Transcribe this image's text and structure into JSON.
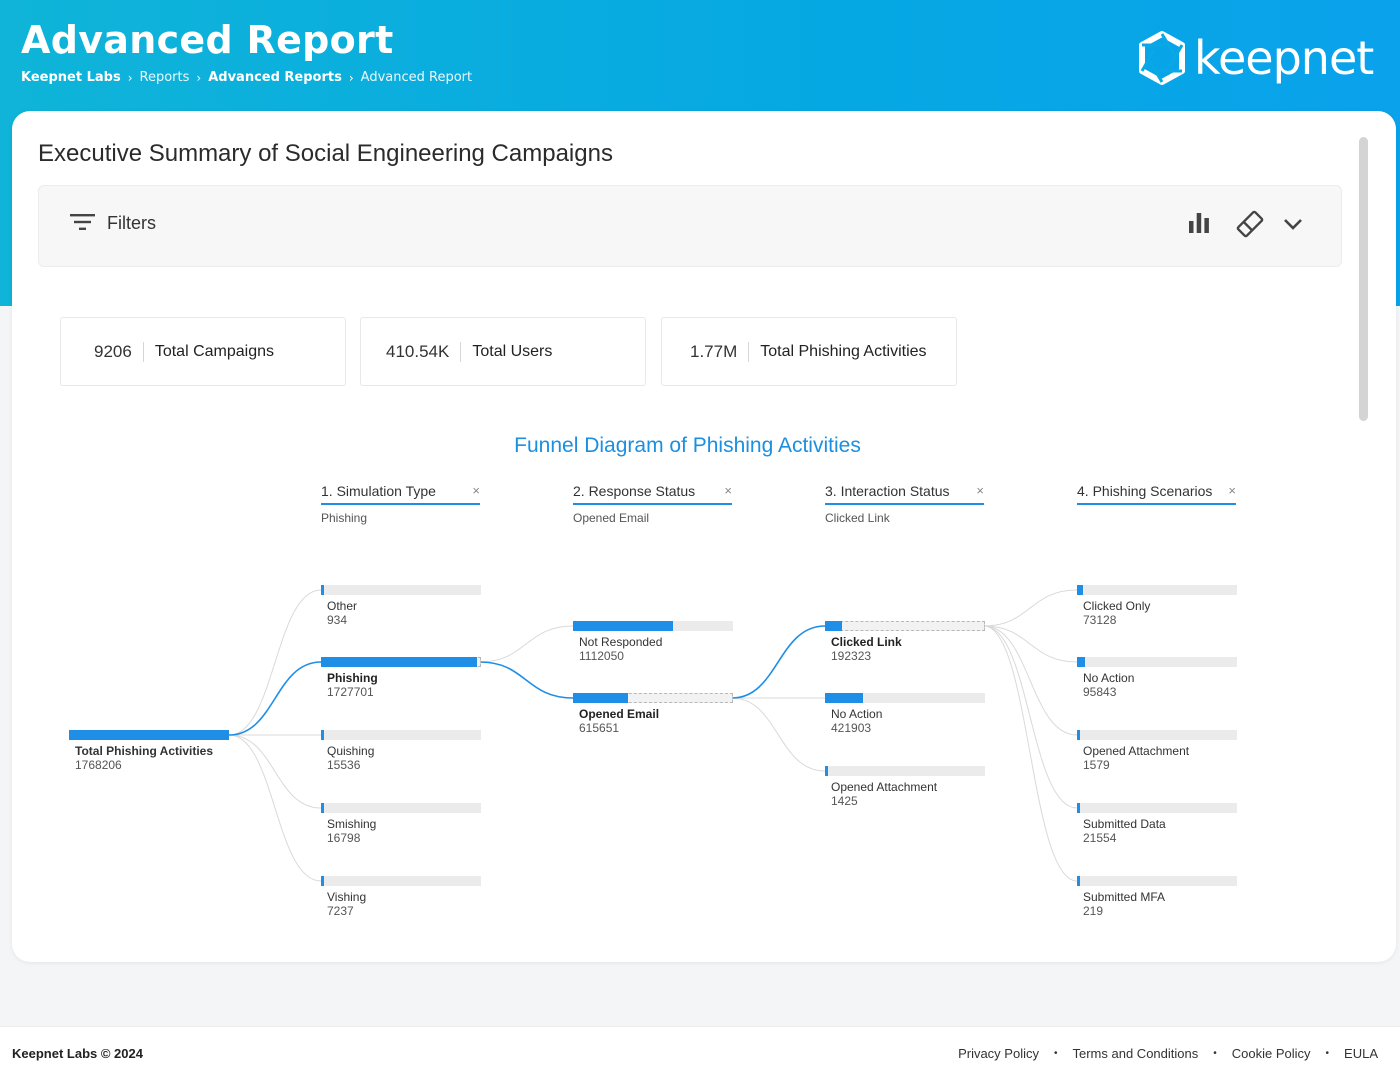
{
  "header": {
    "title": "Advanced Report",
    "breadcrumb": [
      "Keepnet Labs",
      "Reports",
      "Advanced Reports",
      "Advanced Report"
    ],
    "logo_text": "keepnet"
  },
  "main": {
    "title": "Executive Summary of Social Engineering Campaigns",
    "filters_label": "Filters",
    "toolbar_icons": [
      "bar-chart-icon",
      "eraser-icon",
      "chevron-down-icon"
    ]
  },
  "kpis": [
    {
      "value": "9206",
      "label": "Total Campaigns"
    },
    {
      "value": "410.54K",
      "label": "Total Users"
    },
    {
      "value": "1.77M",
      "label": "Total Phishing Activities"
    }
  ],
  "funnel": {
    "title": "Funnel Diagram of Phishing Activities",
    "accent": "#1e8ee6",
    "root": {
      "name": "Total Phishing Activities",
      "value": "1768206",
      "fraction": 1.0
    },
    "columns": [
      {
        "header": "1. Simulation Type",
        "selected": "Phishing",
        "close": "×",
        "nodes": [
          {
            "name": "Other",
            "value": "934",
            "fraction": 0.002
          },
          {
            "name": "Phishing",
            "value": "1727701",
            "fraction": 0.977,
            "selected": true
          },
          {
            "name": "Quishing",
            "value": "15536",
            "fraction": 0.009
          },
          {
            "name": "Smishing",
            "value": "16798",
            "fraction": 0.01
          },
          {
            "name": "Vishing",
            "value": "7237",
            "fraction": 0.004
          }
        ]
      },
      {
        "header": "2. Response Status",
        "selected": "Opened Email",
        "close": "×",
        "nodes": [
          {
            "name": "Not Responded",
            "value": "1112050",
            "fraction": 0.625
          },
          {
            "name": "Opened Email",
            "value": "615651",
            "fraction": 0.346,
            "selected": true
          }
        ]
      },
      {
        "header": "3. Interaction Status",
        "selected": "Clicked Link",
        "close": "×",
        "nodes": [
          {
            "name": "Clicked Link",
            "value": "192323",
            "fraction": 0.108,
            "selected": true
          },
          {
            "name": "No Action",
            "value": "421903",
            "fraction": 0.237
          },
          {
            "name": "Opened Attachment",
            "value": "1425",
            "fraction": 0.001
          }
        ]
      },
      {
        "header": "4. Phishing Scenarios",
        "selected": "",
        "close": "×",
        "nodes": [
          {
            "name": "Clicked Only",
            "value": "73128",
            "fraction": 0.04
          },
          {
            "name": "No Action",
            "value": "95843",
            "fraction": 0.05
          },
          {
            "name": "Opened Attachment",
            "value": "1579",
            "fraction": 0.001
          },
          {
            "name": "Submitted Data",
            "value": "21554",
            "fraction": 0.012
          },
          {
            "name": "Submitted MFA",
            "value": "219",
            "fraction": 0.0003
          }
        ]
      }
    ]
  },
  "footer": {
    "copyright": "Keepnet Labs © 2024",
    "links": [
      "Privacy Policy",
      "Terms and Conditions",
      "Cookie Policy",
      "EULA"
    ],
    "separator": "•"
  }
}
